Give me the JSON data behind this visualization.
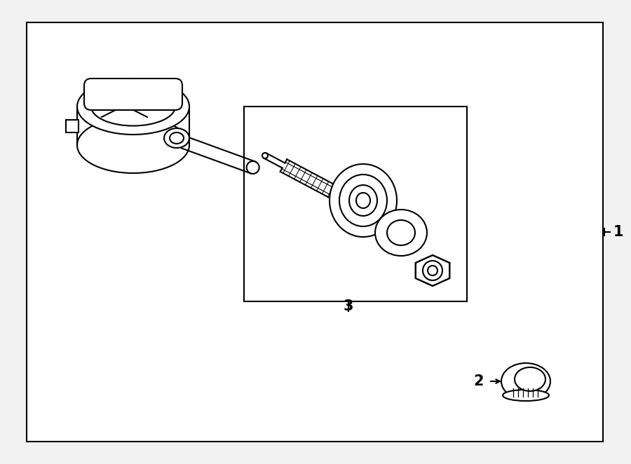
{
  "background_color": "#f2f2f2",
  "line_color": "#000000",
  "label_1": "1",
  "label_2": "2",
  "label_3": "3",
  "fig_width": 9.0,
  "fig_height": 6.62,
  "dpi": 100
}
